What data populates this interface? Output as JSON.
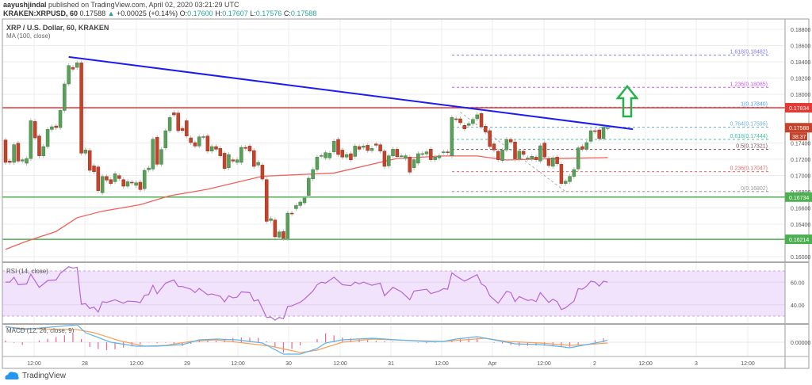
{
  "header": {
    "author": "aayushjindal",
    "published": "published on TradingView.com, April 02, 2020 03:21:29 UTC",
    "symbol": "KRAKEN:XRPUSD, 60",
    "last": "0.17588",
    "change": "+0.00025 (+0.14%)",
    "o_label": "O:",
    "o": "0.17600",
    "h_label": "H:",
    "h": "0.17607",
    "l_label": "L:",
    "l": "0.17576",
    "c_label": "C:",
    "c": "0.17588",
    "up_icon": "triangle-up-icon"
  },
  "legend": {
    "title": "XRP / U.S. Dollar, 60, KRAKEN",
    "ma": "MA (100, close)",
    "rsi": "RSI (14, close)",
    "macd": "MACD (12, 26, close, 9)"
  },
  "footer": {
    "brand": "TradingView",
    "icon": "tradingview-cloud-icon"
  },
  "colors": {
    "up": "#5aa05a",
    "down": "#c5432b",
    "ma": "#f0605a",
    "trendline": "#1c1cf0",
    "resistance": "#e53935",
    "support": "#4caf50",
    "rsi": "#b565d6",
    "rsi_band": "#f2e3fc",
    "macd": "#5ab4ef",
    "signal": "#f7a15a",
    "hist": "#f06292",
    "arrow": "#22b24c"
  },
  "chart_data": {
    "type": "candlestick",
    "interval": "60",
    "price_axis": {
      "ticks": [
        "0.18800",
        "0.18600",
        "0.18400",
        "0.18200",
        "0.18000",
        "0.17400",
        "0.17200",
        "0.17000",
        "0.16800",
        "0.16600",
        "0.16400",
        "0.16000"
      ],
      "range": [
        0.159,
        0.1895
      ]
    },
    "time_axis": {
      "ticks": [
        "12:00",
        "28",
        "12:00",
        "29",
        "12:00",
        "30",
        "12:00",
        "31",
        "12:00",
        "Apr",
        "12:00",
        "2",
        "12:00",
        "3",
        "12:00"
      ]
    },
    "candles_oc": [
      [
        0.17437,
        0.17161
      ],
      [
        0.17177,
        0.17161
      ],
      [
        0.17161,
        0.17379
      ],
      [
        0.17398,
        0.17177
      ],
      [
        0.17177,
        0.17193
      ],
      [
        0.17151,
        0.17209
      ],
      [
        0.17209,
        0.17674
      ],
      [
        0.17665,
        0.17463
      ],
      [
        0.17486,
        0.17242
      ],
      [
        0.17242,
        0.17356
      ],
      [
        0.17356,
        0.17567
      ],
      [
        0.17567,
        0.176
      ],
      [
        0.17609,
        0.1759
      ],
      [
        0.1759,
        0.17801
      ],
      [
        0.17801,
        0.18127
      ],
      [
        0.18127,
        0.18354
      ],
      [
        0.18331,
        0.18309
      ],
      [
        0.18331,
        0.18387
      ],
      [
        0.18387,
        0.17275
      ],
      [
        0.17275,
        0.17314
      ],
      [
        0.17307,
        0.17063
      ],
      [
        0.17118,
        0.17047
      ],
      [
        0.17105,
        0.16813
      ],
      [
        0.16787,
        0.16988
      ],
      [
        0.16988,
        0.16943
      ],
      [
        0.16949,
        0.16901
      ],
      [
        0.16923,
        0.17021
      ],
      [
        0.16998,
        0.16962
      ],
      [
        0.16949,
        0.16868
      ],
      [
        0.16868,
        0.16923
      ],
      [
        0.16917,
        0.1691
      ],
      [
        0.16878,
        0.1691
      ],
      [
        0.16917,
        0.16826
      ],
      [
        0.16836,
        0.17063
      ],
      [
        0.1707,
        0.17092
      ],
      [
        0.17079,
        0.17447
      ],
      [
        0.1747,
        0.17138
      ],
      [
        0.17138,
        0.1732
      ],
      [
        0.1734,
        0.17551
      ],
      [
        0.17551,
        0.17713
      ],
      [
        0.17772,
        0.17746
      ],
      [
        0.17769,
        0.17551
      ],
      [
        0.1758,
        0.17554
      ],
      [
        0.17674,
        0.17486
      ],
      [
        0.17463,
        0.17405
      ],
      [
        0.17405,
        0.17362
      ],
      [
        0.17362,
        0.17476
      ],
      [
        0.17476,
        0.17478
      ],
      [
        0.17486,
        0.173
      ],
      [
        0.173,
        0.17356
      ],
      [
        0.17356,
        0.17323
      ],
      [
        0.17333,
        0.17242
      ],
      [
        0.17274,
        0.17086
      ],
      [
        0.17096,
        0.17258
      ],
      [
        0.17193,
        0.17177
      ],
      [
        0.17161,
        0.17193
      ],
      [
        0.17161,
        0.17346
      ],
      [
        0.17346,
        0.17333
      ],
      [
        0.17362,
        0.173
      ],
      [
        0.17307,
        0.17112
      ],
      [
        0.17128,
        0.17161
      ],
      [
        0.17128,
        0.16956
      ],
      [
        0.16949,
        0.16435
      ],
      [
        0.16445,
        0.16468
      ],
      [
        0.16452,
        0.16244
      ],
      [
        0.1624,
        0.16305
      ],
      [
        0.16309,
        0.16224
      ],
      [
        0.16224,
        0.16536
      ],
      [
        0.16536,
        0.1653
      ],
      [
        0.16591,
        0.1663
      ],
      [
        0.1663,
        0.16673
      ],
      [
        0.16663,
        0.16722
      ],
      [
        0.16754,
        0.16966
      ],
      [
        0.16959,
        0.17073
      ],
      [
        0.17073,
        0.17226
      ],
      [
        0.17242,
        0.17245
      ],
      [
        0.17216,
        0.17281
      ],
      [
        0.17216,
        0.17274
      ],
      [
        0.17291,
        0.17421
      ],
      [
        0.17444,
        0.17258
      ],
      [
        0.17313,
        0.17226
      ],
      [
        0.17226,
        0.17258
      ],
      [
        0.17268,
        0.17193
      ],
      [
        0.17235,
        0.17362
      ],
      [
        0.17356,
        0.17323
      ],
      [
        0.17346,
        0.17362
      ],
      [
        0.17372,
        0.17307
      ],
      [
        0.17307,
        0.17333
      ],
      [
        0.17388,
        0.17372
      ],
      [
        0.17378,
        0.173
      ],
      [
        0.173,
        0.17112
      ],
      [
        0.17118,
        0.17242
      ],
      [
        0.17242,
        0.17323
      ],
      [
        0.17323,
        0.17232
      ],
      [
        0.17232,
        0.17242
      ],
      [
        0.1721,
        0.17243
      ],
      [
        0.17226,
        0.17041
      ],
      [
        0.17096,
        0.17194
      ],
      [
        0.17152,
        0.17269
      ],
      [
        0.17259,
        0.17269
      ],
      [
        0.17265,
        0.17291
      ],
      [
        0.17324,
        0.17194
      ],
      [
        0.17194,
        0.17226
      ],
      [
        0.17217,
        0.17243
      ],
      [
        0.17282,
        0.17291
      ],
      [
        0.17291,
        0.17282
      ],
      [
        0.17243,
        0.17714
      ],
      [
        0.17698,
        0.17691
      ],
      [
        0.17698,
        0.17649
      ],
      [
        0.17617,
        0.17574
      ],
      [
        0.17617,
        0.17639
      ],
      [
        0.17639,
        0.17691
      ],
      [
        0.17698,
        0.17747
      ],
      [
        0.17763,
        0.176
      ],
      [
        0.17607,
        0.17535
      ],
      [
        0.17552,
        0.17356
      ],
      [
        0.17389,
        0.17314
      ],
      [
        0.17298,
        0.17194
      ],
      [
        0.17184,
        0.17314
      ],
      [
        0.17314,
        0.17444
      ],
      [
        0.17444,
        0.17412
      ],
      [
        0.17412,
        0.17204
      ],
      [
        0.17204,
        0.17301
      ],
      [
        0.17298,
        0.17259
      ],
      [
        0.1721,
        0.17217
      ],
      [
        0.17204,
        0.17236
      ],
      [
        0.17226,
        0.17194
      ],
      [
        0.17178,
        0.17366
      ],
      [
        0.17399,
        0.17226
      ],
      [
        0.1721,
        0.17122
      ],
      [
        0.17113,
        0.17217
      ],
      [
        0.17226,
        0.17145
      ],
      [
        0.17138,
        0.16901
      ],
      [
        0.16901,
        0.1693
      ],
      [
        0.16924,
        0.16989
      ],
      [
        0.16989,
        0.17073
      ],
      [
        0.1708,
        0.1734
      ],
      [
        0.17356,
        0.17324
      ],
      [
        0.17324,
        0.17405
      ],
      [
        0.17421,
        0.17551
      ],
      [
        0.17551,
        0.17542
      ],
      [
        0.17561,
        0.17454
      ],
      [
        0.17454,
        0.17594
      ],
      [
        0.17584,
        0.17588
      ]
    ],
    "ma100": [
      [
        0,
        0.1609
      ],
      [
        5,
        0.1619
      ],
      [
        12,
        0.1631
      ],
      [
        17,
        0.1648
      ],
      [
        23,
        0.1656
      ],
      [
        32,
        0.1664
      ],
      [
        39,
        0.1675
      ],
      [
        48,
        0.1683
      ],
      [
        61,
        0.1699
      ],
      [
        78,
        0.1703
      ],
      [
        93,
        0.1721
      ],
      [
        104,
        0.1724
      ],
      [
        112,
        0.1724
      ],
      [
        119,
        0.1719
      ],
      [
        132,
        0.1721
      ],
      [
        143,
        0.1722
      ]
    ],
    "trendline": [
      [
        15,
        0.1846
      ],
      [
        149,
        0.1757
      ]
    ],
    "horizontal_levels": [
      {
        "price": 0.17834,
        "label": "0.17834",
        "color": "#e53935"
      },
      {
        "price": 0.16734,
        "label": "0.16734",
        "color": "#4caf50"
      },
      {
        "price": 0.16214,
        "label": "0.16214",
        "color": "#4caf50"
      }
    ],
    "current_price": {
      "label": "0.17588",
      "countdown": "38:37"
    },
    "fibonacci": [
      {
        "level": "1.618",
        "price": 0.18482,
        "label": "1.618(0.18482)",
        "color": "#7c7cf0"
      },
      {
        "level": "1.236",
        "price": 0.18085,
        "label": "1.236(0.18085)",
        "color": "#c45ce6"
      },
      {
        "level": "1",
        "price": 0.1784,
        "label": "1(0.17840)",
        "color": "#4a9fe0"
      },
      {
        "level": "0.764",
        "price": 0.17595,
        "label": "0.764(0.17595)",
        "color": "#6db3dc"
      },
      {
        "level": "0.618",
        "price": 0.17444,
        "label": "0.618(0.17444)",
        "color": "#3cc4a0"
      },
      {
        "level": "0.5",
        "price": 0.17321,
        "label": "0.5(0.17321)",
        "color": "#7a4a5c"
      },
      {
        "level": "0.236",
        "price": 0.17047,
        "label": "0.236(0.17047)",
        "color": "#e56a6a"
      },
      {
        "level": "0",
        "price": 0.16802,
        "label": "0(0.16802)",
        "color": "#999999"
      }
    ],
    "fib_anchor": [
      [
        108,
        0.1778
      ],
      [
        133,
        0.16802
      ]
    ],
    "rsi": {
      "ticks": [
        "60.00",
        "40.00"
      ],
      "band": [
        30,
        70
      ],
      "values": [
        [
          0,
          60.1
        ],
        [
          1,
          60.1
        ],
        [
          2,
          64.3
        ],
        [
          3,
          57.8
        ],
        [
          5,
          58.5
        ],
        [
          6,
          67.1
        ],
        [
          8,
          55.4
        ],
        [
          10,
          61.5
        ],
        [
          12,
          62
        ],
        [
          13,
          67.9
        ],
        [
          15,
          73.7
        ],
        [
          16,
          72.5
        ],
        [
          17,
          73.2
        ],
        [
          18,
          40.5
        ],
        [
          19,
          41
        ],
        [
          20,
          36.7
        ],
        [
          21,
          37.9
        ],
        [
          22,
          33.5
        ],
        [
          23,
          42.8
        ],
        [
          24,
          42.1
        ],
        [
          26,
          44.4
        ],
        [
          28,
          41.4
        ],
        [
          29,
          43.3
        ],
        [
          31,
          42.8
        ],
        [
          32,
          41.9
        ],
        [
          33,
          48.4
        ],
        [
          34,
          49.1
        ],
        [
          35,
          57.3
        ],
        [
          36,
          49.8
        ],
        [
          38,
          59.2
        ],
        [
          40,
          62
        ],
        [
          41,
          56.2
        ],
        [
          42,
          56.2
        ],
        [
          44,
          53.8
        ],
        [
          45,
          50.8
        ],
        [
          46,
          54.5
        ],
        [
          48,
          48.9
        ],
        [
          49,
          49.6
        ],
        [
          51,
          47.5
        ],
        [
          52,
          42.6
        ],
        [
          53,
          48
        ],
        [
          54,
          46.1
        ],
        [
          55,
          46.8
        ],
        [
          56,
          51.5
        ],
        [
          58,
          50.8
        ],
        [
          59,
          43.3
        ],
        [
          60,
          44.5
        ],
        [
          62,
          28.8
        ],
        [
          63,
          29.2
        ],
        [
          64,
          26.4
        ],
        [
          65,
          28.8
        ],
        [
          66,
          27.6
        ],
        [
          67,
          38.6
        ],
        [
          68,
          39.1
        ],
        [
          70,
          42.3
        ],
        [
          71,
          45.1
        ],
        [
          73,
          52.2
        ],
        [
          74,
          57.8
        ],
        [
          75,
          60.1
        ],
        [
          76,
          59.2
        ],
        [
          78,
          64.4
        ],
        [
          80,
          57.8
        ],
        [
          82,
          56.9
        ],
        [
          83,
          60.1
        ],
        [
          84,
          58.5
        ],
        [
          85,
          60.1
        ],
        [
          87,
          57.3
        ],
        [
          89,
          59.2
        ],
        [
          90,
          48
        ],
        [
          92,
          55.5
        ],
        [
          94,
          51.5
        ],
        [
          96,
          44.5
        ],
        [
          97,
          52.2
        ],
        [
          100,
          53.8
        ],
        [
          101,
          49.9
        ],
        [
          103,
          52.2
        ],
        [
          104,
          54.3
        ],
        [
          105,
          53.8
        ],
        [
          106,
          68.3
        ],
        [
          107,
          65.5
        ],
        [
          109,
          60.9
        ],
        [
          112,
          66.7
        ],
        [
          113,
          58.5
        ],
        [
          114,
          56.2
        ],
        [
          115,
          48
        ],
        [
          117,
          41.4
        ],
        [
          119,
          52
        ],
        [
          120,
          50.8
        ],
        [
          121,
          42.8
        ],
        [
          122,
          47.3
        ],
        [
          124,
          43.8
        ],
        [
          125,
          44.5
        ],
        [
          126,
          42.8
        ],
        [
          127,
          50.8
        ],
        [
          129,
          42.1
        ],
        [
          130,
          44.9
        ],
        [
          131,
          42.8
        ],
        [
          132,
          35.8
        ],
        [
          133,
          37.4
        ],
        [
          135,
          43.3
        ],
        [
          136,
          54.3
        ],
        [
          137,
          53.8
        ],
        [
          138,
          56.6
        ],
        [
          139,
          60.9
        ],
        [
          140,
          60.1
        ],
        [
          141,
          56.6
        ],
        [
          142,
          60.9
        ],
        [
          143,
          60.1
        ]
      ]
    },
    "macd": {
      "ticks": [
        "0.00000"
      ],
      "macd": [
        [
          0,
          0.002
        ],
        [
          4,
          0.0016
        ],
        [
          17,
          0.0022
        ],
        [
          19,
          0.0012
        ],
        [
          25,
          0
        ],
        [
          31,
          -0.0005
        ],
        [
          36,
          -0.0005
        ],
        [
          42,
          -0.0003
        ],
        [
          46,
          0.0003
        ],
        [
          50,
          0.0004
        ],
        [
          55,
          0.0003
        ],
        [
          61,
          -0.0001
        ],
        [
          66,
          -0.0015
        ],
        [
          70,
          -0.0015
        ],
        [
          74,
          -0.0008
        ],
        [
          76,
          -0.0001
        ],
        [
          80,
          0.0003
        ],
        [
          87,
          0.0005
        ],
        [
          93,
          0.0003
        ],
        [
          100,
          0.0001
        ],
        [
          104,
          0.0001
        ],
        [
          107,
          0.0004
        ],
        [
          112,
          0.0007
        ],
        [
          116,
          0.0003
        ],
        [
          121,
          -0.0002
        ],
        [
          127,
          -0.0003
        ],
        [
          131,
          -0.0005
        ],
        [
          134,
          -0.0007
        ],
        [
          136,
          -0.0005
        ],
        [
          142,
          0.0001
        ],
        [
          143,
          0.0003
        ]
      ],
      "signal": [
        [
          0,
          0.0019
        ],
        [
          6,
          0.0017
        ],
        [
          17,
          0.0016
        ],
        [
          21,
          0.0012
        ],
        [
          27,
          0.0002
        ],
        [
          33,
          -0.0005
        ],
        [
          38,
          -0.0004
        ],
        [
          44,
          0.0001
        ],
        [
          50,
          0.0003
        ],
        [
          55,
          0
        ],
        [
          63,
          -0.0005
        ],
        [
          70,
          -0.0013
        ],
        [
          74,
          -0.001
        ],
        [
          80,
          0
        ],
        [
          87,
          0.0004
        ],
        [
          97,
          0.0002
        ],
        [
          104,
          0.0001
        ],
        [
          114,
          0.0005
        ],
        [
          119,
          0.0001
        ],
        [
          127,
          -0.0001
        ],
        [
          134,
          -0.0004
        ],
        [
          138,
          -0.0003
        ],
        [
          143,
          -0.0001
        ]
      ]
    }
  }
}
